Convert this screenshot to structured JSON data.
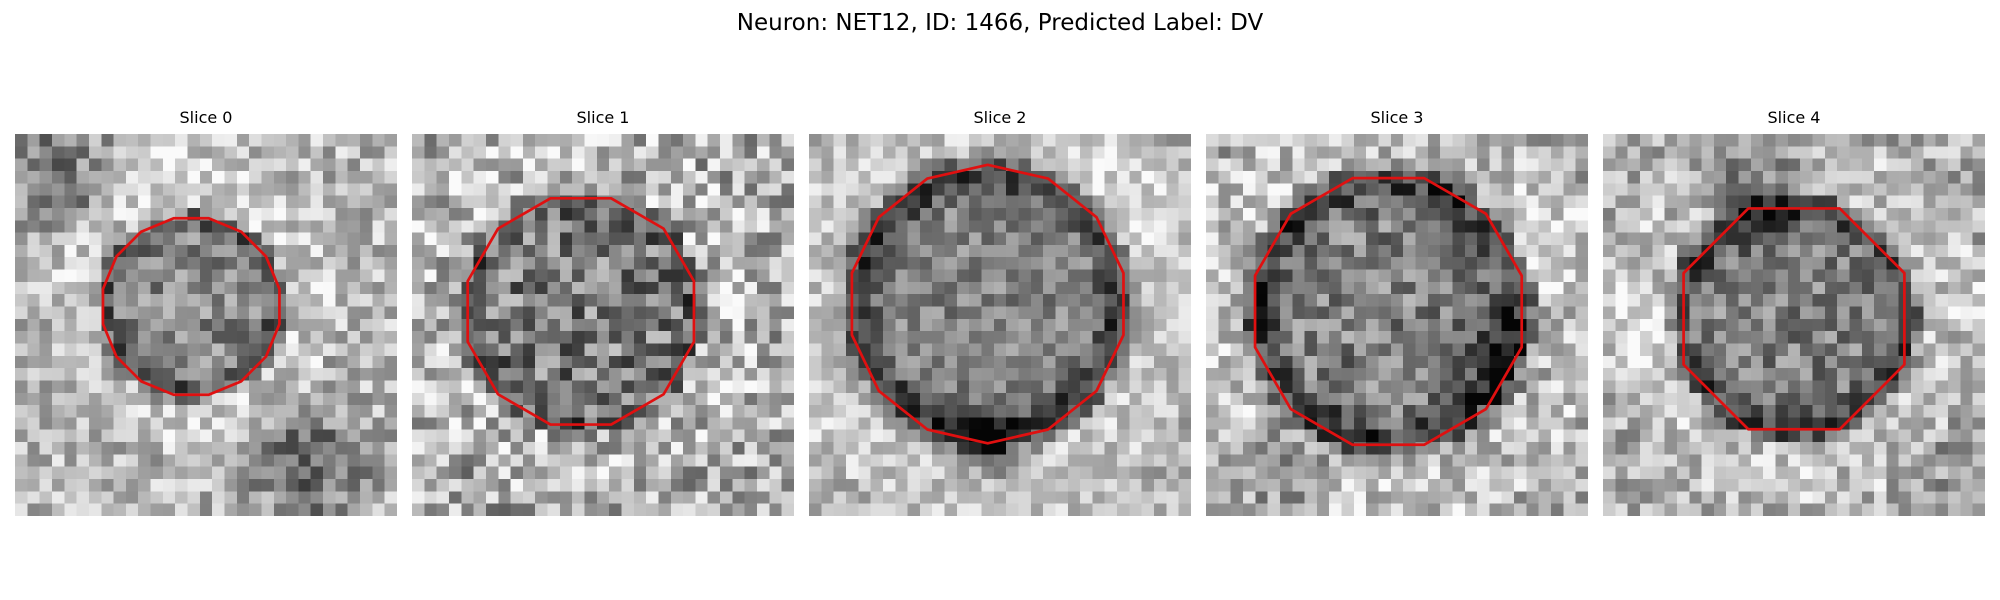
{
  "figure": {
    "title": "Neuron: NET12, ID: 1466, Predicted Label: DV"
  },
  "colors": {
    "contour": "#e01010",
    "background": "#ffffff",
    "text": "#000000"
  },
  "grid_size": 31,
  "panels": [
    {
      "title": "Slice 0",
      "contour_color": "#e01010"
    },
    {
      "title": "Slice 1",
      "contour_color": "#e01010"
    },
    {
      "title": "Slice 2",
      "contour_color": "#e01010"
    },
    {
      "title": "Slice 3",
      "contour_color": "#e01010"
    },
    {
      "title": "Slice 4",
      "contour_color": "#e01010"
    }
  ]
}
